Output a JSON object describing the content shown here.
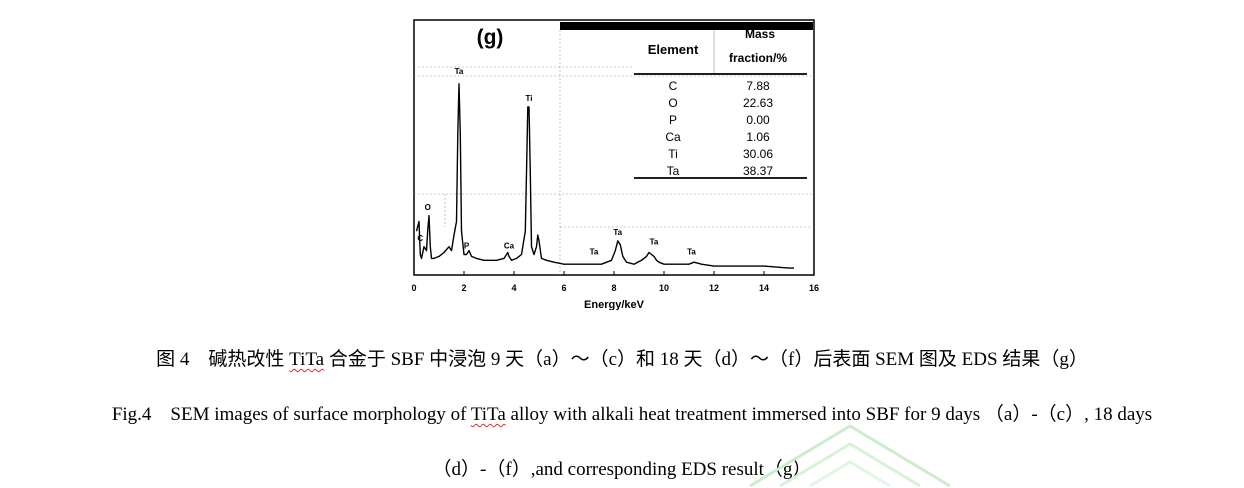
{
  "chart_data": {
    "type": "line",
    "panel_label": "(g)",
    "xlabel": "Energy/keV",
    "xlim": [
      0,
      16
    ],
    "xticks": [
      0,
      2,
      4,
      6,
      8,
      10,
      12,
      14,
      16
    ],
    "ylim": [
      0,
      100
    ],
    "spectrum": {
      "x": [
        0.1,
        0.2,
        0.25,
        0.3,
        0.4,
        0.5,
        0.55,
        0.6,
        0.65,
        0.7,
        0.8,
        1.0,
        1.2,
        1.4,
        1.5,
        1.6,
        1.7,
        1.75,
        1.8,
        1.85,
        1.9,
        2.0,
        2.1,
        2.2,
        2.3,
        2.5,
        2.8,
        3.0,
        3.3,
        3.6,
        3.7,
        3.75,
        3.8,
        3.9,
        4.1,
        4.3,
        4.45,
        4.5,
        4.55,
        4.6,
        4.65,
        4.7,
        4.8,
        4.9,
        4.95,
        5.0,
        5.1,
        5.3,
        5.6,
        6.0,
        6.5,
        7.0,
        7.5,
        7.9,
        8.05,
        8.15,
        8.25,
        8.35,
        8.5,
        8.8,
        9.1,
        9.3,
        9.4,
        9.5,
        9.6,
        9.7,
        9.8,
        10.0,
        10.5,
        11.0,
        11.2,
        11.5,
        12.0,
        13.0,
        14.0,
        15.0,
        15.2
      ],
      "y": [
        20,
        25,
        8,
        6,
        12,
        10,
        21,
        28,
        12,
        6,
        6,
        7,
        9,
        12,
        10,
        18,
        25,
        70,
        96,
        70,
        20,
        8,
        8,
        10,
        7,
        6,
        5,
        5,
        5,
        6,
        8,
        9,
        7,
        5,
        6,
        8,
        20,
        50,
        84,
        84,
        50,
        12,
        8,
        12,
        18,
        15,
        6,
        5,
        4,
        3,
        3,
        3,
        3,
        5,
        10,
        15,
        13,
        7,
        4,
        3,
        5,
        7,
        9,
        8,
        7,
        5,
        4,
        3,
        3,
        3,
        4,
        3,
        2,
        2,
        2,
        1,
        1
      ]
    },
    "peak_labels": [
      {
        "text": "C",
        "x": 0.25,
        "y": 14
      },
      {
        "text": "O",
        "x": 0.55,
        "y": 30
      },
      {
        "text": "Ta",
        "x": 1.8,
        "y": 100
      },
      {
        "text": "P",
        "x": 2.1,
        "y": 10
      },
      {
        "text": "Ca",
        "x": 3.8,
        "y": 10
      },
      {
        "text": "Ti",
        "x": 4.6,
        "y": 86
      },
      {
        "text": "Ta",
        "x": 7.2,
        "y": 7
      },
      {
        "text": "Ta",
        "x": 8.15,
        "y": 17
      },
      {
        "text": "Ta",
        "x": 9.6,
        "y": 12
      },
      {
        "text": "Ta",
        "x": 11.1,
        "y": 7
      }
    ],
    "table": {
      "col_element": "Element",
      "col_mass_line1": "Mass",
      "col_mass_line2": "fraction/%",
      "rows": [
        {
          "element": "C",
          "value": "7.88"
        },
        {
          "element": "O",
          "value": "22.63"
        },
        {
          "element": "P",
          "value": "0.00"
        },
        {
          "element": "Ca",
          "value": "1.06"
        },
        {
          "element": "Ti",
          "value": "30.06"
        },
        {
          "element": "Ta",
          "value": "38.37"
        }
      ]
    }
  },
  "caption": {
    "cn_a": "图 4　碱热改性 ",
    "cn_b": "TiTa",
    "cn_c": " 合金于 SBF 中浸泡 9 天（a）～（c）和 18 天（d）～（f）后表面 SEM 图及 EDS 结果（g）",
    "en1_a": "Fig.4　SEM images of surface morphology of ",
    "en1_b": "TiTa",
    "en1_c": " alloy with alkali heat treatment immersed into SBF for 9 days （a）-（c）, 18 days",
    "en2": "（d）-（f）,and corresponding EDS result（g）"
  }
}
